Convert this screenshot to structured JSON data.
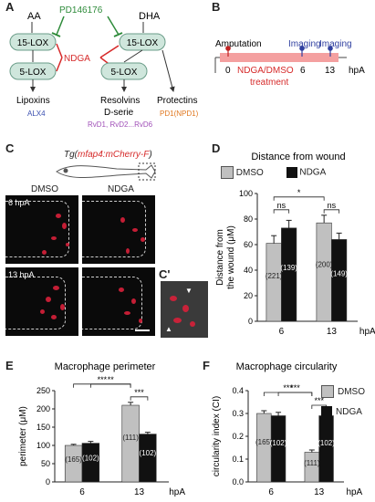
{
  "panels": {
    "A": "A",
    "B": "B",
    "C": "C",
    "Cp": "C'",
    "D": "D",
    "E": "E",
    "F": "F"
  },
  "pathway": {
    "aa": "AA",
    "dha": "DHA",
    "inhibitor1": "PD146176",
    "inhibitor2": "NDGA",
    "lox15_left": "15-LOX",
    "lox5_left": "5-LOX",
    "lox15_right": "15-LOX",
    "lox5_right": "5-LOX",
    "lipoxins": "Lipoxins",
    "alx4": "ALX4",
    "resolvins": "Resolvins",
    "dserie": "D-serie",
    "rvd": "RvD1, RvD2...RvD6",
    "protectins": "Protectins",
    "pd1": "PD1(NPD1)",
    "colors": {
      "box": "#cfe6dc",
      "green": "#2e8b3a",
      "red": "#d62a2a",
      "blue": "#3a4fb0",
      "purple": "#a050b8",
      "orange": "#e07820"
    }
  },
  "timeline": {
    "amputation": "Amputation",
    "imaging1": "Imaging",
    "imaging2": "Imaging",
    "t0": "0",
    "t6": "6",
    "t13": "13",
    "unit": "hpA",
    "treatment_line1": "NDGA/DMSO",
    "treatment_line2": "treatment",
    "colors": {
      "bar": "#f4a0a0",
      "amp": "#c02020",
      "img": "#3040a0"
    }
  },
  "imaging": {
    "transgene_prefix": "Tg(",
    "transgene_name": "mfap4:mCherry-F",
    "transgene_suffix": ")",
    "dmso": "DMSO",
    "ndga": "NDGA",
    "hpa6": "6 hpA",
    "hpa13": "13 hpA"
  },
  "charts": {
    "legend": {
      "dmso": "DMSO",
      "ndga": "NDGA"
    },
    "colors": {
      "dmso": "#c0c0c0",
      "ndga": "#111111"
    }
  },
  "chart_data": [
    {
      "type": "bar",
      "panel": "D",
      "title": "Distance from wound",
      "ylabel": "Distance from the wound (μM)",
      "categories": [
        "6",
        "13"
      ],
      "xunit": "hpA",
      "ylim": [
        0,
        100
      ],
      "yticks": [
        0,
        20,
        40,
        60,
        80,
        100
      ],
      "series": [
        {
          "name": "DMSO",
          "values": [
            61,
            77
          ],
          "errors": [
            6,
            6
          ],
          "n": [
            "(221)",
            "(200)"
          ]
        },
        {
          "name": "NDGA",
          "values": [
            73,
            64
          ],
          "errors": [
            6,
            5
          ],
          "n": [
            "(139)",
            "(149)"
          ]
        }
      ],
      "significance": [
        {
          "from": [
            0,
            0
          ],
          "to": [
            0,
            1
          ],
          "label": "ns"
        },
        {
          "from": [
            0,
            0
          ],
          "to": [
            1,
            0
          ],
          "label": "*"
        },
        {
          "from": [
            1,
            0
          ],
          "to": [
            1,
            1
          ],
          "label": "ns"
        }
      ]
    },
    {
      "type": "bar",
      "panel": "E",
      "title": "Macrophage perimeter",
      "ylabel": "perimeter (μM)",
      "categories": [
        "6",
        "13"
      ],
      "xunit": "hpA",
      "ylim": [
        0,
        250
      ],
      "yticks": [
        0,
        50,
        100,
        150,
        200,
        250
      ],
      "series": [
        {
          "name": "DMSO",
          "values": [
            100,
            210
          ],
          "errors": [
            3,
            8
          ],
          "n": [
            "(165)",
            "(111)"
          ]
        },
        {
          "name": "NDGA",
          "values": [
            106,
            131
          ],
          "errors": [
            5,
            5
          ],
          "n": [
            "(102)",
            "(102)"
          ]
        }
      ],
      "significance": [
        {
          "from": [
            0,
            0
          ],
          "to": [
            1,
            0
          ],
          "label": "***"
        },
        {
          "from": [
            0,
            1
          ],
          "to": [
            1,
            0
          ],
          "label": "**"
        },
        {
          "from": [
            1,
            0
          ],
          "to": [
            1,
            1
          ],
          "label": "***"
        }
      ]
    },
    {
      "type": "bar",
      "panel": "F",
      "title": "Macrophage circularity",
      "ylabel": "circularity index (CI)",
      "categories": [
        "6",
        "13"
      ],
      "xunit": "hpA",
      "ylim": [
        0,
        0.4
      ],
      "yticks": [
        "0.0",
        "0.1",
        "0.2",
        "0.3",
        "0.4"
      ],
      "legend_position": "top-right",
      "series": [
        {
          "name": "DMSO",
          "values": [
            0.3,
            0.13
          ],
          "errors": [
            0.012,
            0.01
          ],
          "n": [
            "(165)",
            "(111)"
          ]
        },
        {
          "name": "NDGA",
          "values": [
            0.29,
            0.29
          ],
          "errors": [
            0.015,
            0.015
          ],
          "n": [
            "(102)",
            "(102)"
          ]
        }
      ],
      "significance": [
        {
          "from": [
            0,
            0
          ],
          "to": [
            1,
            0
          ],
          "label": "***"
        },
        {
          "from": [
            0,
            1
          ],
          "to": [
            1,
            0
          ],
          "label": "***"
        },
        {
          "from": [
            1,
            0
          ],
          "to": [
            1,
            1
          ],
          "label": "***"
        }
      ]
    }
  ]
}
